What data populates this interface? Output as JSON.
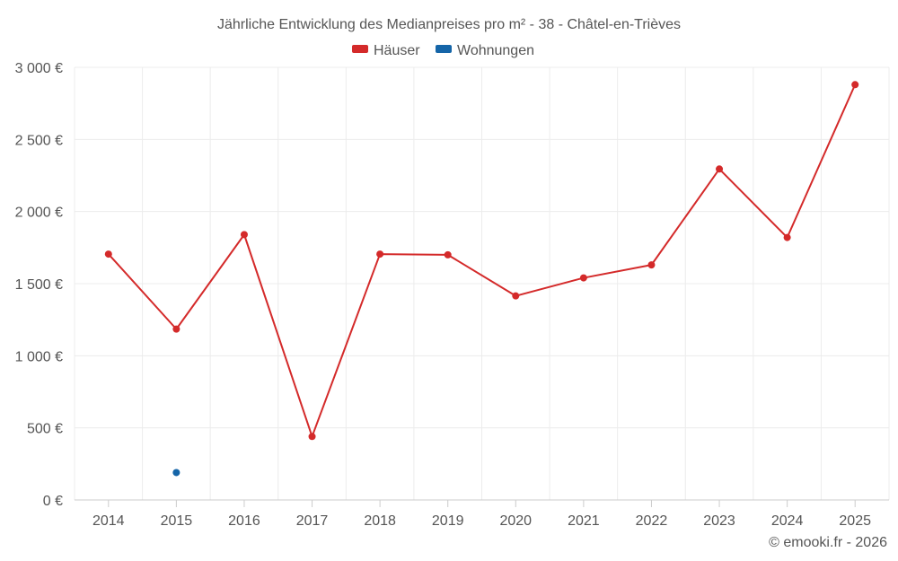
{
  "chart_data": {
    "type": "line",
    "title": "Jährliche Entwicklung des Medianpreises pro m² - 38 - Châtel-en-Trièves",
    "categories": [
      "2014",
      "2015",
      "2016",
      "2017",
      "2018",
      "2019",
      "2020",
      "2021",
      "2022",
      "2023",
      "2024",
      "2025"
    ],
    "series": [
      {
        "name": "Häuser",
        "color": "#d42a2a",
        "values": [
          1705,
          1185,
          1840,
          440,
          1705,
          1700,
          1415,
          1540,
          1630,
          2295,
          1820,
          2880
        ]
      },
      {
        "name": "Wohnungen",
        "color": "#1565a8",
        "values": [
          null,
          190,
          null,
          null,
          null,
          null,
          null,
          null,
          null,
          null,
          null,
          null
        ]
      }
    ],
    "yticks": [
      0,
      500,
      1000,
      1500,
      2000,
      2500,
      3000
    ],
    "ytick_labels": [
      "0 €",
      "500 €",
      "1 000 €",
      "1 500 €",
      "2 000 €",
      "2 500 €",
      "3 000 €"
    ],
    "ylim": [
      0,
      3000
    ],
    "legend": "top-center",
    "grid": true
  },
  "credit": "© emooki.fr - 2026"
}
